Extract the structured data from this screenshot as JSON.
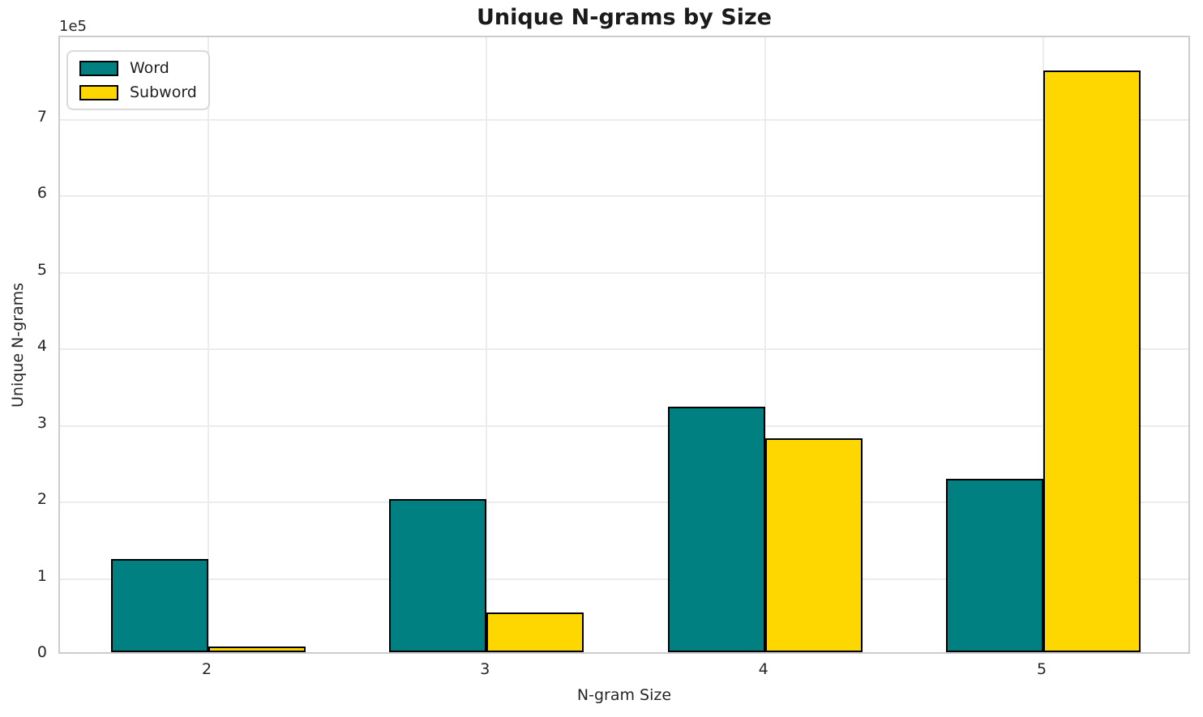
{
  "chart_data": {
    "type": "bar",
    "title": "Unique N-grams by Size",
    "xlabel": "N-gram Size",
    "ylabel": "Unique N-grams",
    "y_offset_label": "1e5",
    "categories": [
      "2",
      "3",
      "4",
      "5"
    ],
    "series": [
      {
        "name": "Word",
        "color": "#008080",
        "values": [
          122000,
          200000,
          321000,
          227000
        ]
      },
      {
        "name": "Subword",
        "color": "#FFD700",
        "values": [
          7000,
          52000,
          280000,
          760000
        ]
      }
    ],
    "bar_edge_color": "#000000",
    "bar_width_units": 0.35,
    "ylim": [
      0,
      808000
    ],
    "ytick_values": [
      0,
      100000,
      200000,
      300000,
      400000,
      500000,
      600000,
      700000
    ],
    "ytick_labels": [
      "0",
      "1",
      "2",
      "3",
      "4",
      "5",
      "6",
      "7"
    ],
    "grid": true,
    "legend_position": "upper left"
  }
}
